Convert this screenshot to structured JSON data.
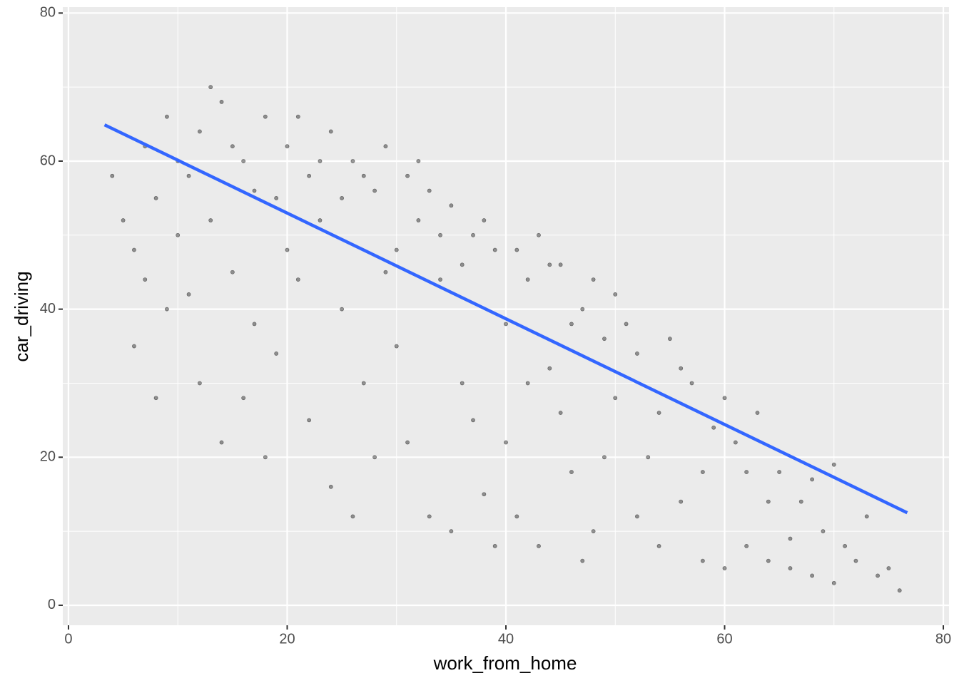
{
  "chart_data": {
    "type": "scatter",
    "x_label": "work_from_home",
    "y_label": "car_driving",
    "xlim": [
      -0.52,
      80.52
    ],
    "ylim": [
      -2.7,
      80.8
    ],
    "xticks": [
      0,
      20,
      40,
      60,
      80
    ],
    "yticks": [
      0,
      20,
      40,
      60,
      80
    ],
    "xminor": [
      10,
      30,
      50,
      70
    ],
    "yminor": [
      10,
      30,
      50,
      70
    ],
    "grid": true,
    "point_color": "#000000",
    "fit_color": "#3366ff",
    "points": {
      "x": [
        4,
        5,
        6,
        7,
        8,
        9,
        9,
        10,
        6,
        8,
        10,
        7,
        11,
        12,
        13,
        14,
        15,
        16,
        17,
        18,
        19,
        12,
        14,
        16,
        18,
        20,
        11,
        13,
        15,
        17,
        19,
        20,
        21,
        22,
        23,
        24,
        25,
        26,
        27,
        28,
        29,
        30,
        22,
        24,
        26,
        28,
        30,
        21,
        23,
        25,
        27,
        29,
        31,
        32,
        33,
        34,
        35,
        36,
        37,
        38,
        39,
        40,
        31,
        33,
        35,
        37,
        39,
        32,
        34,
        36,
        38,
        40,
        41,
        42,
        43,
        44,
        45,
        46,
        47,
        48,
        49,
        50,
        41,
        43,
        45,
        47,
        49,
        42,
        44,
        46,
        48,
        50,
        51,
        52,
        53,
        54,
        55,
        56,
        57,
        58,
        59,
        60,
        52,
        54,
        56,
        58,
        60,
        61,
        62,
        63,
        64,
        65,
        66,
        67,
        68,
        69,
        70,
        71,
        72,
        73,
        74,
        75,
        76,
        62,
        64,
        66,
        68,
        70
      ],
      "y": [
        58,
        52,
        48,
        62,
        55,
        40,
        66,
        50,
        35,
        28,
        60,
        44,
        58,
        64,
        52,
        68,
        45,
        60,
        38,
        66,
        55,
        30,
        22,
        28,
        20,
        48,
        42,
        70,
        62,
        56,
        34,
        62,
        66,
        58,
        52,
        64,
        40,
        60,
        30,
        56,
        62,
        48,
        25,
        16,
        12,
        20,
        35,
        44,
        60,
        55,
        58,
        45,
        58,
        52,
        56,
        44,
        54,
        30,
        50,
        15,
        48,
        38,
        22,
        12,
        10,
        25,
        8,
        60,
        50,
        46,
        52,
        22,
        48,
        44,
        50,
        32,
        46,
        18,
        40,
        10,
        36,
        42,
        12,
        8,
        26,
        6,
        20,
        30,
        46,
        38,
        44,
        28,
        38,
        34,
        20,
        8,
        36,
        14,
        30,
        6,
        24,
        28,
        12,
        26,
        32,
        18,
        5,
        22,
        8,
        26,
        6,
        18,
        5,
        14,
        4,
        10,
        3,
        8,
        6,
        12,
        4,
        5,
        2,
        18,
        14,
        9,
        17,
        19
      ]
    },
    "fit": {
      "x": [
        3.3,
        76.7
      ],
      "y": [
        64.9,
        12.5
      ]
    }
  }
}
